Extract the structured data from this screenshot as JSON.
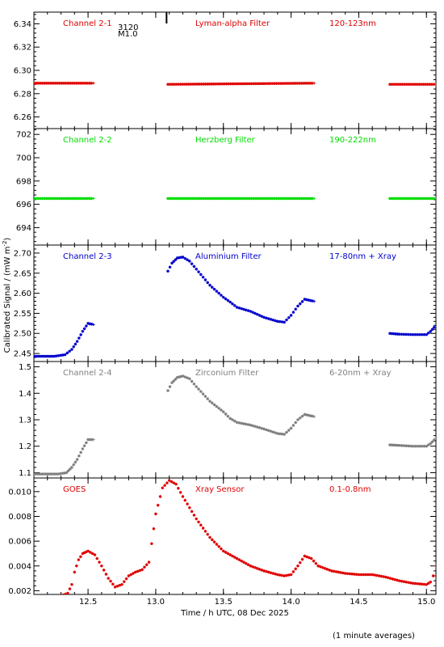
{
  "chart_data": {
    "type": "scatter",
    "xlabel": "Time / h UTC, 08 Dec 2025",
    "ylabel": "Calibrated Signal / (mW m",
    "ylabel_sup": "-2",
    "ylabel_close": ")",
    "footnote": "(1 minute averages)",
    "marker": {
      "label_top": "3120",
      "label_bottom": "M1.0",
      "x": 13.08
    },
    "xlim": [
      12.1,
      15.07
    ],
    "xticks": [
      12.5,
      13.0,
      13.5,
      14.0,
      14.5,
      15.0
    ],
    "xtick_labels": [
      "12.5",
      "13.0",
      "13.5",
      "14.0",
      "14.5",
      "15.0"
    ],
    "panels": [
      {
        "channel": "Channel 2-1",
        "filter": "Lyman-alpha Filter",
        "band": "120-123nm",
        "color": "#e00000",
        "ylim": [
          6.25,
          6.35
        ],
        "yticks": [
          6.26,
          6.28,
          6.3,
          6.32,
          6.34
        ],
        "ytick_labels": [
          "6.26",
          "6.28",
          "6.30",
          "6.32",
          "6.34"
        ],
        "segments": [
          {
            "x": [
              12.1,
              12.54
            ],
            "y": [
              6.289,
              6.289
            ]
          },
          {
            "x": [
              13.09,
              14.17
            ],
            "y": [
              6.288,
              6.289
            ]
          },
          {
            "x": [
              14.73,
              15.07
            ],
            "y": [
              6.288,
              6.288
            ]
          }
        ]
      },
      {
        "channel": "Channel 2-2",
        "filter": "Herzberg Filter",
        "band": "190-222nm",
        "color": "#00dd00",
        "ylim": [
          692.5,
          702.5
        ],
        "yticks": [
          694,
          696,
          698,
          700,
          702
        ],
        "ytick_labels": [
          "694",
          "696",
          "698",
          "700",
          "702"
        ],
        "segments": [
          {
            "x": [
              12.1,
              12.54
            ],
            "y": [
              696.5,
              696.5
            ]
          },
          {
            "x": [
              13.09,
              14.17
            ],
            "y": [
              696.5,
              696.5
            ]
          },
          {
            "x": [
              14.73,
              15.07
            ],
            "y": [
              696.5,
              696.5
            ]
          }
        ]
      },
      {
        "channel": "Channel 2-3",
        "filter": "Aluminium Filter",
        "band": "17-80nm + Xray",
        "color": "#0000cc",
        "ylim": [
          2.43,
          2.72
        ],
        "yticks": [
          2.45,
          2.5,
          2.55,
          2.6,
          2.65,
          2.7
        ],
        "ytick_labels": [
          "2.45",
          "2.50",
          "2.55",
          "2.60",
          "2.65",
          "2.70"
        ],
        "segments": [
          {
            "x": [
              12.1,
              12.25,
              12.33,
              12.38,
              12.42,
              12.46,
              12.5,
              12.54
            ],
            "y": [
              2.443,
              2.443,
              2.447,
              2.46,
              2.48,
              2.505,
              2.525,
              2.522
            ]
          },
          {
            "x": [
              13.09,
              13.12,
              13.16,
              13.2,
              13.25,
              13.3,
              13.4,
              13.5,
              13.55,
              13.6,
              13.7,
              13.8,
              13.9,
              13.95,
              14.0,
              14.05,
              14.1,
              14.17
            ],
            "y": [
              2.655,
              2.675,
              2.688,
              2.69,
              2.68,
              2.66,
              2.62,
              2.59,
              2.578,
              2.565,
              2.555,
              2.54,
              2.53,
              2.528,
              2.545,
              2.568,
              2.585,
              2.58
            ]
          },
          {
            "x": [
              14.73,
              14.8,
              14.9,
              15.0,
              15.03,
              15.07
            ],
            "y": [
              2.5,
              2.498,
              2.497,
              2.497,
              2.505,
              2.52
            ]
          }
        ]
      },
      {
        "channel": "Channel 2-4",
        "filter": "Zirconium Filter",
        "band": "6-20nm + Xray",
        "color": "#808080",
        "ylim": [
          1.08,
          1.52
        ],
        "yticks": [
          1.1,
          1.2,
          1.3,
          1.4,
          1.5
        ],
        "ytick_labels": [
          "1.1",
          "1.2",
          "1.3",
          "1.4",
          "1.5"
        ],
        "segments": [
          {
            "x": [
              12.1,
              12.28,
              12.34,
              12.38,
              12.42,
              12.46,
              12.5,
              12.54
            ],
            "y": [
              1.095,
              1.095,
              1.1,
              1.12,
              1.15,
              1.19,
              1.225,
              1.225
            ]
          },
          {
            "x": [
              13.09,
              13.12,
              13.16,
              13.2,
              13.25,
              13.3,
              13.4,
              13.5,
              13.55,
              13.6,
              13.7,
              13.8,
              13.9,
              13.95,
              14.0,
              14.05,
              14.1,
              14.17
            ],
            "y": [
              1.41,
              1.44,
              1.46,
              1.465,
              1.455,
              1.425,
              1.37,
              1.33,
              1.305,
              1.29,
              1.28,
              1.265,
              1.248,
              1.245,
              1.268,
              1.3,
              1.32,
              1.312
            ]
          },
          {
            "x": [
              14.73,
              14.8,
              14.9,
              15.0,
              15.03,
              15.07
            ],
            "y": [
              1.205,
              1.203,
              1.2,
              1.2,
              1.21,
              1.23
            ]
          }
        ]
      },
      {
        "channel": "GOES",
        "filter": "Xray Sensor",
        "band": "0.1-0.8nm",
        "color": "#e00000",
        "ylim": [
          0.0017,
          0.0111
        ],
        "yticks": [
          0.002,
          0.004,
          0.006,
          0.008,
          0.01
        ],
        "ytick_labels": [
          "0.002",
          "0.004",
          "0.006",
          "0.008",
          "0.010"
        ],
        "segments": [
          {
            "x": [
              12.1,
              12.2,
              12.3,
              12.35,
              12.38,
              12.4,
              12.43,
              12.46,
              12.5,
              12.55,
              12.6,
              12.65,
              12.7,
              12.75,
              12.8,
              12.85,
              12.9,
              12.95,
              12.97,
              13.0,
              13.05,
              13.1,
              13.15,
              13.2,
              13.3,
              13.4,
              13.5,
              13.6,
              13.7,
              13.8,
              13.9,
              13.95,
              14.0,
              14.05,
              14.1,
              14.15,
              14.2,
              14.3,
              14.4,
              14.5,
              14.6,
              14.7,
              14.8,
              14.9,
              15.0,
              15.03,
              15.05,
              15.07
            ],
            "y": [
              0.0015,
              0.0015,
              0.0016,
              0.0018,
              0.0025,
              0.0035,
              0.0045,
              0.005,
              0.0052,
              0.0049,
              0.004,
              0.003,
              0.0023,
              0.0025,
              0.0032,
              0.0035,
              0.0037,
              0.0043,
              0.0058,
              0.0082,
              0.0103,
              0.0109,
              0.0106,
              0.0096,
              0.0078,
              0.0063,
              0.0052,
              0.0046,
              0.004,
              0.0036,
              0.0033,
              0.0032,
              0.0033,
              0.004,
              0.0048,
              0.0046,
              0.004,
              0.0036,
              0.0034,
              0.0033,
              0.0033,
              0.0031,
              0.0028,
              0.0026,
              0.0025,
              0.0027,
              0.0032,
              0.004
            ]
          }
        ]
      }
    ]
  }
}
